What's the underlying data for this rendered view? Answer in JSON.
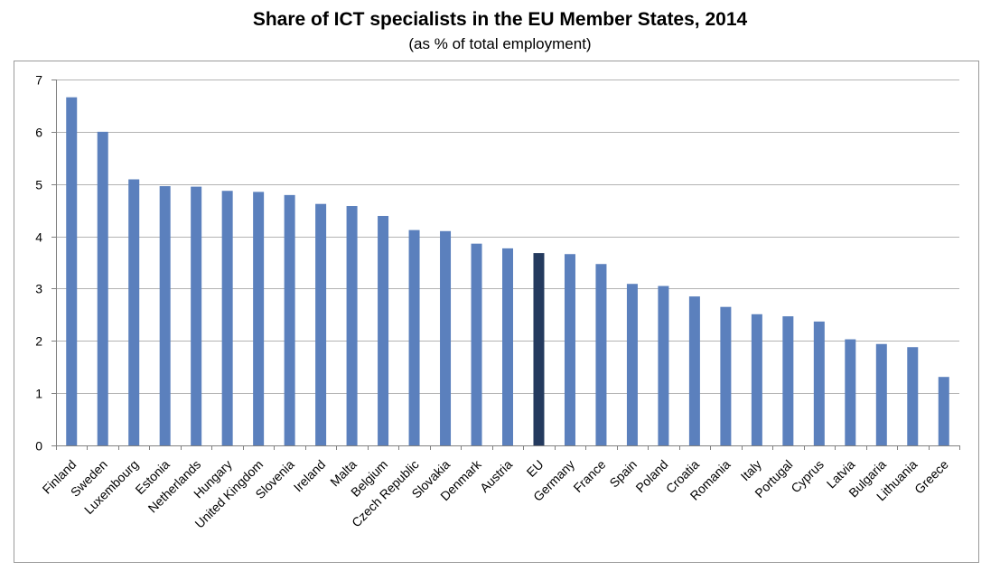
{
  "chart_data": {
    "type": "bar",
    "title": "Share of ICT specialists in the EU Member States, 2014",
    "subtitle": "(as % of total employment)",
    "xlabel": "",
    "ylabel": "",
    "ylim": [
      0,
      7
    ],
    "yticks": [
      0,
      1,
      2,
      3,
      4,
      5,
      6,
      7
    ],
    "grid": true,
    "legend": "none",
    "colors": {
      "bar": "#5b80bd",
      "highlight": "#243a5e",
      "grid": "#b3b3b3",
      "axis": "#808080"
    },
    "highlight_category": "EU",
    "categories": [
      "Finland",
      "Sweden",
      "Luxembourg",
      "Estonia",
      "Netherlands",
      "Hungary",
      "United Kingdom",
      "Slovenia",
      "Ireland",
      "Malta",
      "Belgium",
      "Czech Republic",
      "Slovakia",
      "Denmark",
      "Austria",
      "EU",
      "Germany",
      "France",
      "Spain",
      "Poland",
      "Croatia",
      "Romania",
      "Italy",
      "Portugal",
      "Cyprus",
      "Latvia",
      "Bulgaria",
      "Lithuania",
      "Greece"
    ],
    "values": [
      6.66,
      6.0,
      5.09,
      4.96,
      4.95,
      4.87,
      4.85,
      4.79,
      4.62,
      4.58,
      4.39,
      4.12,
      4.1,
      3.86,
      3.77,
      3.68,
      3.66,
      3.47,
      3.09,
      3.05,
      2.85,
      2.65,
      2.51,
      2.47,
      2.37,
      2.03,
      1.94,
      1.88,
      1.31
    ]
  }
}
